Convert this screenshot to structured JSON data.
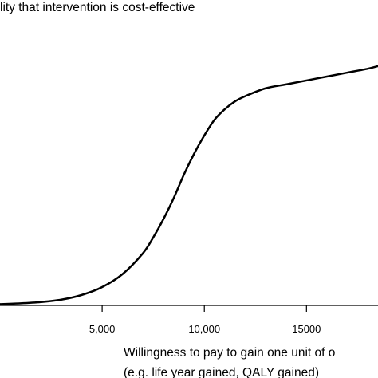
{
  "chart_data": {
    "type": "line",
    "title": "",
    "ylabel": "lity that intervention is cost-effective",
    "xlabel_lines": [
      "Willingness to pay to gain one unit of o",
      "(e.g. life year gained, QALY gained)"
    ],
    "x_ticks": [
      {
        "value": 5000,
        "label": "5,000"
      },
      {
        "value": 10000,
        "label": "10,000"
      },
      {
        "value": 15000,
        "label": 15000
      }
    ],
    "xlim": [
      0,
      18500
    ],
    "ylim": [
      0,
      1
    ],
    "grid": false,
    "legend": "none",
    "line_color": "#000000",
    "series": [
      {
        "x": [
          0,
          1000,
          2000,
          3000,
          4000,
          5000,
          6000,
          7000,
          7500,
          8000,
          8500,
          9000,
          9500,
          10000,
          10500,
          11000,
          11500,
          12000,
          13000,
          14000,
          15000,
          16000,
          17000,
          18000,
          18500
        ],
        "y": [
          0.005,
          0.008,
          0.013,
          0.022,
          0.04,
          0.07,
          0.12,
          0.2,
          0.26,
          0.33,
          0.41,
          0.5,
          0.58,
          0.65,
          0.71,
          0.75,
          0.78,
          0.8,
          0.83,
          0.845,
          0.86,
          0.875,
          0.89,
          0.905,
          0.915
        ]
      }
    ]
  }
}
